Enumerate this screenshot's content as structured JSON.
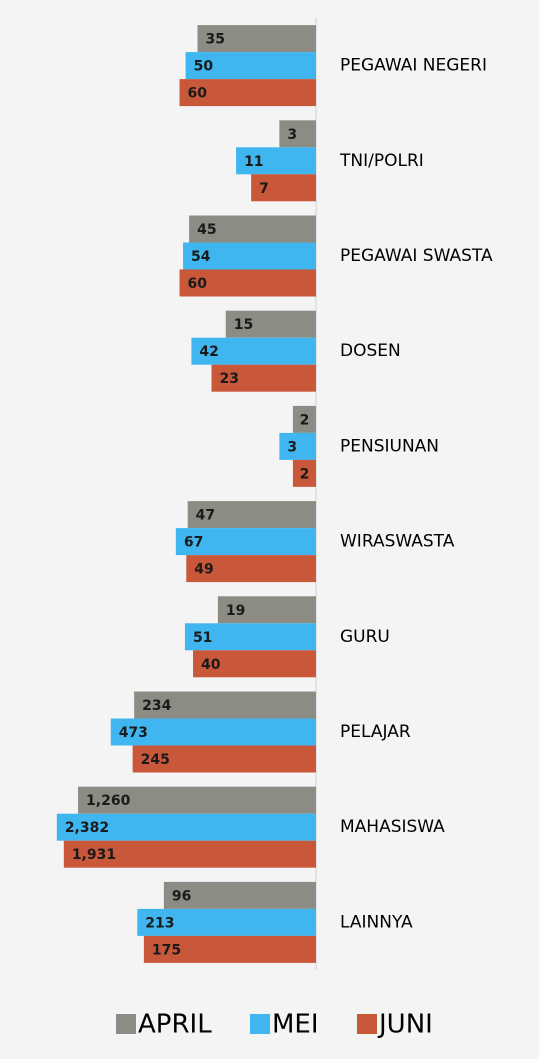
{
  "chart_data": {
    "type": "bar",
    "orientation": "horizontal",
    "log_scale": true,
    "x_reversed": true,
    "categories": [
      "PEGAWAI NEGERI",
      "TNI/POLRI",
      "PEGAWAI SWASTA",
      "DOSEN",
      "PENSIUNAN",
      "WIRASWASTA",
      "GURU",
      "PELAJAR",
      "MAHASISWA",
      "LAINNYA"
    ],
    "xlim": [
      1,
      10000
    ],
    "series": [
      {
        "name": "APRIL",
        "color": "#8c8c84",
        "values": [
          35,
          3,
          45,
          15,
          2,
          47,
          19,
          234,
          1260,
          96
        ],
        "value_labels": [
          "35",
          "3",
          "45",
          "15",
          "2",
          "47",
          "19",
          "234",
          "1,260",
          "96"
        ]
      },
      {
        "name": "MEI",
        "color": "#3fb6f0",
        "values": [
          50,
          11,
          54,
          42,
          3,
          67,
          51,
          473,
          2382,
          213
        ],
        "value_labels": [
          "50",
          "11",
          "54",
          "42",
          "3",
          "67",
          "51",
          "473",
          "2,382",
          "213"
        ]
      },
      {
        "name": "JUNI",
        "color": "#c9573a",
        "values": [
          60,
          7,
          60,
          23,
          2,
          49,
          40,
          245,
          1931,
          175
        ],
        "value_labels": [
          "60",
          "7",
          "60",
          "23",
          "2",
          "49",
          "40",
          "245",
          "1,931",
          "175"
        ]
      }
    ],
    "legend": "bottom"
  }
}
